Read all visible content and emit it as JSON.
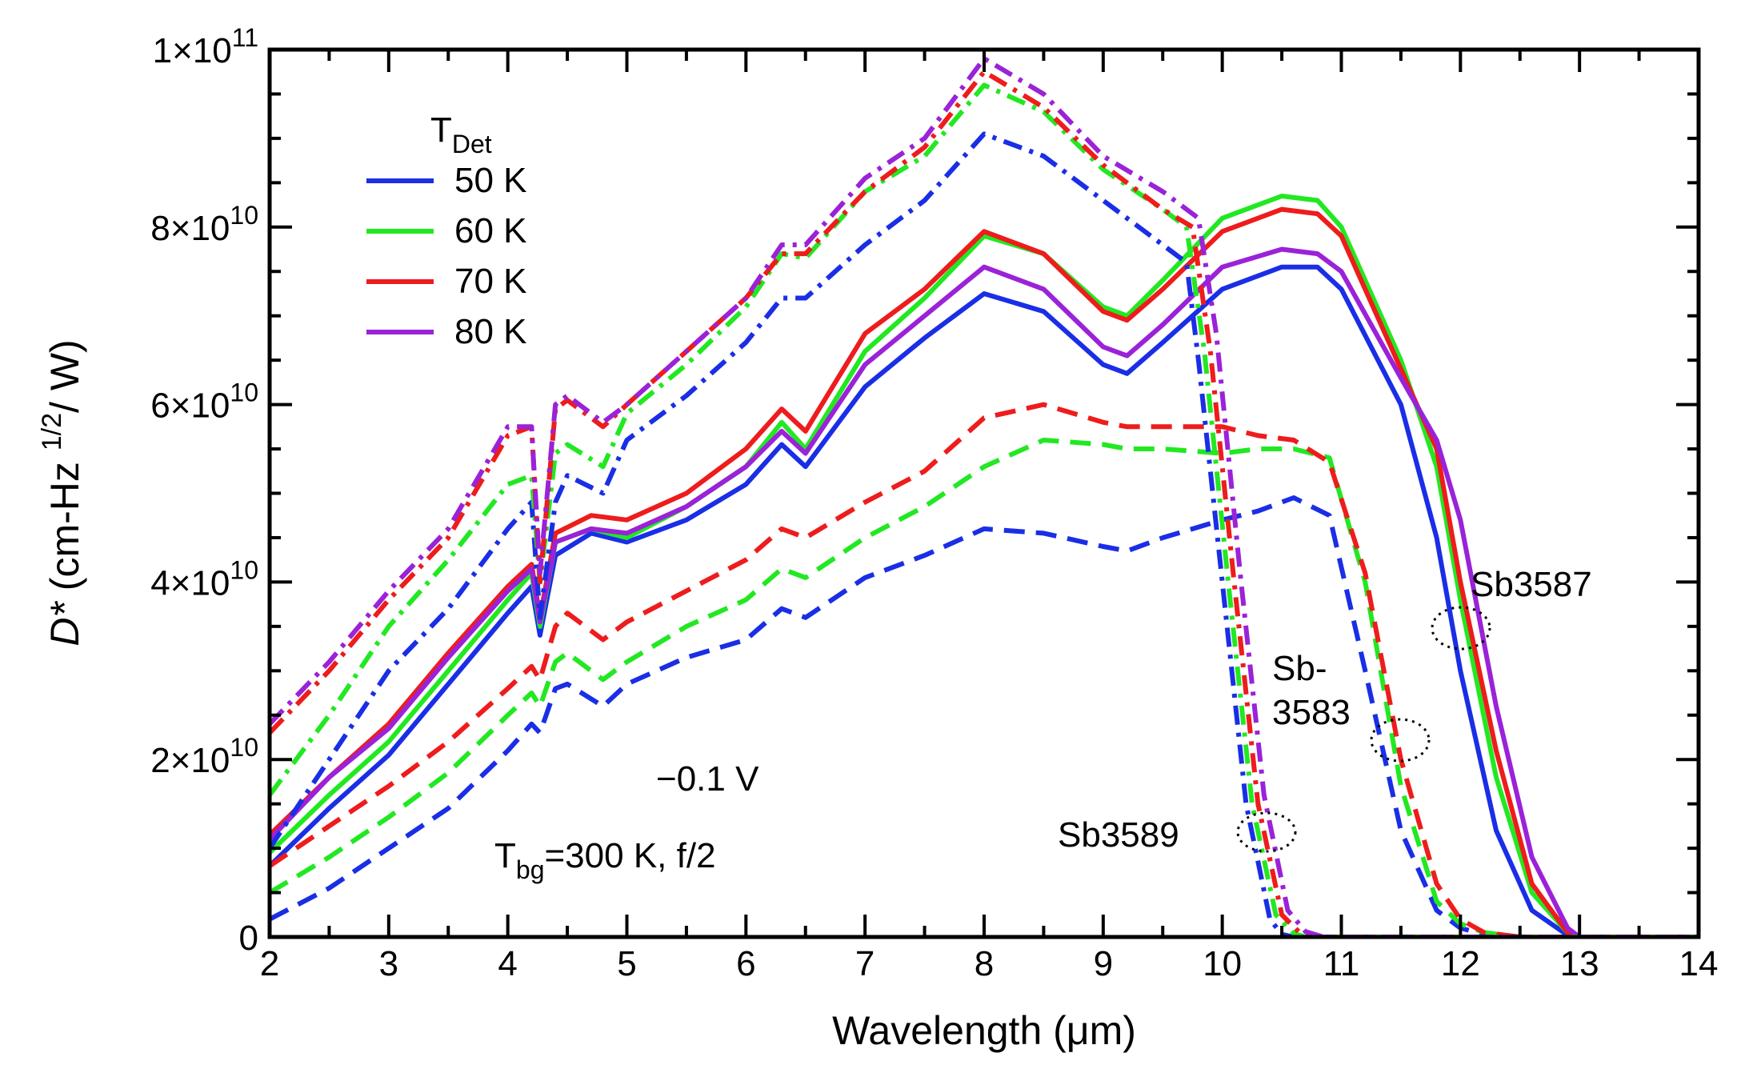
{
  "chart_data": {
    "type": "line",
    "xlabel": "Wavelength (μm)",
    "ylabel_main": "D*",
    "ylabel_rest": "(cm-Hz",
    "ylabel_sup": "1/2",
    "ylabel_end": "/ W)",
    "xlim": [
      2,
      14
    ],
    "ylim": [
      0,
      100000000000
    ],
    "x_ticks": [
      2,
      3,
      4,
      5,
      6,
      7,
      8,
      9,
      10,
      11,
      12,
      13,
      14
    ],
    "x_tick_labels": [
      "2",
      "3",
      "4",
      "5",
      "6",
      "7",
      "8",
      "9",
      "10",
      "11",
      "12",
      "13",
      "14"
    ],
    "y_ticks": [
      {
        "value": 0,
        "mant": "0",
        "exp": ""
      },
      {
        "value": 20000000000,
        "mant": "2×10",
        "exp": "10"
      },
      {
        "value": 40000000000,
        "mant": "4×10",
        "exp": "10"
      },
      {
        "value": 60000000000,
        "mant": "6×10",
        "exp": "10"
      },
      {
        "value": 80000000000,
        "mant": "8×10",
        "exp": "10"
      },
      {
        "value": 100000000000,
        "mant": "1×10",
        "exp": "11"
      }
    ],
    "legend": {
      "title_main": "T",
      "title_sub": "Det",
      "entries": [
        {
          "label": "50 K",
          "color": "#1a2ee6"
        },
        {
          "label": "60 K",
          "color": "#22e822"
        },
        {
          "label": "70 K",
          "color": "#ee1c1c"
        },
        {
          "label": "80 K",
          "color": "#9a22d8"
        }
      ]
    },
    "annotations": {
      "bias": "−0.1 V",
      "tbg_main": "T",
      "tbg_sub": "bg",
      "tbg_rest": "=300 K, f/2",
      "sample_solid": "Sb3587",
      "sample_dashed_1": "Sb-",
      "sample_dashed_2": "3583",
      "sample_dashdot": "Sb3589"
    },
    "series": [
      {
        "name": "Sb3587 50 K",
        "sample": "Sb3587",
        "color": "#1a2ee6",
        "style": "solid",
        "x": [
          2.0,
          2.5,
          3.0,
          3.5,
          4.0,
          4.2,
          4.27,
          4.4,
          4.7,
          5.0,
          5.5,
          6.0,
          6.3,
          6.5,
          7.0,
          7.5,
          8.0,
          8.5,
          9.0,
          9.2,
          9.5,
          10.0,
          10.5,
          10.8,
          11.0,
          11.5,
          11.8,
          12.0,
          12.3,
          12.6,
          12.9,
          13.0,
          14.0
        ],
        "y": [
          8000000000.0,
          14500000000.0,
          20500000000.0,
          28500000000.0,
          36500000000.0,
          39500000000.0,
          34000000000.0,
          43000000000.0,
          45500000000.0,
          44500000000.0,
          47000000000.0,
          51000000000.0,
          55500000000.0,
          53000000000.0,
          62000000000.0,
          67500000000.0,
          72500000000.0,
          70500000000.0,
          64500000000.0,
          63500000000.0,
          67000000000.0,
          73000000000.0,
          75500000000.0,
          75500000000.0,
          73000000000.0,
          60000000000.0,
          45000000000.0,
          30000000000.0,
          12000000000.0,
          3000000000.0,
          200000000.0,
          0,
          0
        ]
      },
      {
        "name": "Sb3587 60 K",
        "sample": "Sb3587",
        "color": "#22e822",
        "style": "solid",
        "x": [
          2.0,
          2.5,
          3.0,
          3.5,
          4.0,
          4.2,
          4.27,
          4.4,
          4.7,
          5.0,
          5.5,
          6.0,
          6.3,
          6.5,
          7.0,
          7.5,
          8.0,
          8.5,
          9.0,
          9.2,
          9.5,
          10.0,
          10.5,
          10.8,
          11.0,
          11.5,
          11.8,
          12.0,
          12.3,
          12.6,
          12.9,
          13.0,
          14.0
        ],
        "y": [
          9500000000.0,
          16000000000.0,
          22000000000.0,
          30000000000.0,
          38000000000.0,
          41000000000.0,
          35000000000.0,
          44500000000.0,
          46000000000.0,
          45000000000.0,
          48500000000.0,
          53000000000.0,
          58000000000.0,
          55000000000.0,
          66000000000.0,
          72000000000.0,
          79000000000.0,
          77000000000.0,
          71000000000.0,
          70000000000.0,
          74000000000.0,
          81000000000.0,
          83500000000.0,
          83000000000.0,
          80000000000.0,
          65000000000.0,
          53000000000.0,
          38000000000.0,
          18000000000.0,
          5000000000.0,
          500000000.0,
          0,
          0
        ]
      },
      {
        "name": "Sb3587 70 K",
        "sample": "Sb3587",
        "color": "#ee1c1c",
        "style": "solid",
        "x": [
          2.0,
          2.5,
          3.0,
          3.5,
          4.0,
          4.2,
          4.27,
          4.4,
          4.7,
          5.0,
          5.5,
          6.0,
          6.3,
          6.5,
          7.0,
          7.5,
          8.0,
          8.5,
          9.0,
          9.2,
          9.5,
          10.0,
          10.5,
          10.8,
          11.0,
          11.5,
          11.8,
          12.0,
          12.3,
          12.6,
          12.9,
          13.0,
          14.0
        ],
        "y": [
          11500000000.0,
          18000000000.0,
          24000000000.0,
          32000000000.0,
          39500000000.0,
          42000000000.0,
          36000000000.0,
          45500000000.0,
          47500000000.0,
          47000000000.0,
          50000000000.0,
          55000000000.0,
          59500000000.0,
          57000000000.0,
          68000000000.0,
          73000000000.0,
          79500000000.0,
          77000000000.0,
          70500000000.0,
          69500000000.0,
          73000000000.0,
          79500000000.0,
          82000000000.0,
          81500000000.0,
          79000000000.0,
          64000000000.0,
          55000000000.0,
          40000000000.0,
          21000000000.0,
          6000000000.0,
          500000000.0,
          0,
          0
        ]
      },
      {
        "name": "Sb3587 80 K",
        "sample": "Sb3587",
        "color": "#9a22d8",
        "style": "solid",
        "x": [
          2.0,
          2.5,
          3.0,
          3.5,
          4.0,
          4.2,
          4.27,
          4.4,
          4.7,
          5.0,
          5.5,
          6.0,
          6.3,
          6.5,
          7.0,
          7.5,
          8.0,
          8.5,
          9.0,
          9.2,
          9.5,
          10.0,
          10.5,
          10.8,
          11.0,
          11.5,
          11.8,
          12.0,
          12.3,
          12.6,
          12.9,
          13.0,
          14.0
        ],
        "y": [
          11000000000.0,
          18000000000.0,
          23500000000.0,
          31500000000.0,
          39000000000.0,
          41500000000.0,
          35500000000.0,
          44500000000.0,
          46000000000.0,
          45500000000.0,
          48500000000.0,
          53000000000.0,
          57000000000.0,
          54500000000.0,
          64500000000.0,
          70000000000.0,
          75500000000.0,
          73000000000.0,
          66500000000.0,
          65500000000.0,
          69000000000.0,
          75500000000.0,
          77500000000.0,
          77000000000.0,
          75000000000.0,
          63000000000.0,
          56000000000.0,
          47000000000.0,
          26000000000.0,
          9000000000.0,
          1000000000.0,
          0,
          0
        ]
      },
      {
        "name": "Sb3583 50 K",
        "sample": "Sb3583",
        "color": "#1a2ee6",
        "style": "dashed",
        "x": [
          2.0,
          2.5,
          3.0,
          3.5,
          4.0,
          4.2,
          4.27,
          4.4,
          4.5,
          4.8,
          5.0,
          5.5,
          6.0,
          6.3,
          6.5,
          7.0,
          7.5,
          8.0,
          8.5,
          9.0,
          9.2,
          9.5,
          10.0,
          10.3,
          10.6,
          10.9,
          11.2,
          11.5,
          11.8,
          12.0,
          12.2,
          12.5,
          14.0
        ],
        "y": [
          2000000000.0,
          5500000000.0,
          10000000000.0,
          14500000000.0,
          21000000000.0,
          24000000000.0,
          23000000000.0,
          28000000000.0,
          28500000000.0,
          26000000000.0,
          28500000000.0,
          31500000000.0,
          33500000000.0,
          37000000000.0,
          36000000000.0,
          40500000000.0,
          43000000000.0,
          46000000000.0,
          45500000000.0,
          44000000000.0,
          43500000000.0,
          45000000000.0,
          47000000000.0,
          48000000000.0,
          49500000000.0,
          47500000000.0,
          30000000000.0,
          12000000000.0,
          3000000000.0,
          1000000000.0,
          300000000.0,
          0,
          0
        ]
      },
      {
        "name": "Sb3583 60 K",
        "sample": "Sb3583",
        "color": "#22e822",
        "style": "dashed",
        "x": [
          2.0,
          2.5,
          3.0,
          3.5,
          4.0,
          4.2,
          4.27,
          4.4,
          4.5,
          4.8,
          5.0,
          5.5,
          6.0,
          6.3,
          6.5,
          7.0,
          7.5,
          8.0,
          8.5,
          9.0,
          9.2,
          9.5,
          10.0,
          10.3,
          10.6,
          10.9,
          11.2,
          11.5,
          11.8,
          12.0,
          12.2,
          12.5,
          14.0
        ],
        "y": [
          5000000000.0,
          9000000000.0,
          13500000000.0,
          18500000000.0,
          25000000000.0,
          27500000000.0,
          26000000000.0,
          31000000000.0,
          32000000000.0,
          29000000000.0,
          31000000000.0,
          35000000000.0,
          38000000000.0,
          41500000000.0,
          40500000000.0,
          45000000000.0,
          48500000000.0,
          53000000000.0,
          56000000000.0,
          55500000000.0,
          55000000000.0,
          55000000000.0,
          54500000000.0,
          55000000000.0,
          55000000000.0,
          54000000000.0,
          40000000000.0,
          17000000000.0,
          4000000000.0,
          1500000000.0,
          500000000.0,
          0,
          0
        ]
      },
      {
        "name": "Sb3583 70 K",
        "sample": "Sb3583",
        "color": "#ee1c1c",
        "style": "dashed",
        "x": [
          2.0,
          2.5,
          3.0,
          3.5,
          4.0,
          4.2,
          4.27,
          4.4,
          4.5,
          4.8,
          5.0,
          5.5,
          6.0,
          6.3,
          6.5,
          7.0,
          7.5,
          8.0,
          8.5,
          9.0,
          9.2,
          9.5,
          10.0,
          10.3,
          10.6,
          10.9,
          11.2,
          11.5,
          11.8,
          12.0,
          12.2,
          12.5,
          14.0
        ],
        "y": [
          8000000000.0,
          12500000000.0,
          17000000000.0,
          22000000000.0,
          28000000000.0,
          30500000000.0,
          29000000000.0,
          35000000000.0,
          36500000000.0,
          33500000000.0,
          35500000000.0,
          39000000000.0,
          42500000000.0,
          46000000000.0,
          45000000000.0,
          49000000000.0,
          52500000000.0,
          58500000000.0,
          60000000000.0,
          58000000000.0,
          57500000000.0,
          57500000000.0,
          57500000000.0,
          56500000000.0,
          56000000000.0,
          53500000000.0,
          41000000000.0,
          20000000000.0,
          6000000000.0,
          2000000000.0,
          500000000.0,
          0,
          0
        ]
      },
      {
        "name": "Sb3589 50 K",
        "sample": "Sb3589",
        "color": "#1a2ee6",
        "style": "dashdot",
        "x": [
          2.0,
          2.5,
          3.0,
          3.5,
          4.0,
          4.2,
          4.27,
          4.4,
          4.5,
          4.8,
          5.0,
          5.5,
          6.0,
          6.3,
          6.5,
          7.0,
          7.5,
          8.0,
          8.5,
          9.0,
          9.5,
          9.7,
          9.8,
          10.0,
          10.2,
          10.4,
          10.5,
          10.6,
          14.0
        ],
        "y": [
          10000000000.0,
          20000000000.0,
          30000000000.0,
          37000000000.0,
          46000000000.0,
          49000000000.0,
          36000000000.0,
          49000000000.0,
          52000000000.0,
          50000000000.0,
          56000000000.0,
          61000000000.0,
          67000000000.0,
          72000000000.0,
          72000000000.0,
          78000000000.0,
          83000000000.0,
          90500000000.0,
          88000000000.0,
          83000000000.0,
          78000000000.0,
          76000000000.0,
          65000000000.0,
          40000000000.0,
          15000000000.0,
          2000000000.0,
          300000000.0,
          0,
          0
        ]
      },
      {
        "name": "Sb3589 60 K",
        "sample": "Sb3589",
        "color": "#22e822",
        "style": "dashdot",
        "x": [
          2.0,
          2.5,
          3.0,
          3.5,
          4.0,
          4.2,
          4.27,
          4.4,
          4.5,
          4.8,
          5.0,
          5.5,
          6.0,
          6.3,
          6.5,
          7.0,
          7.5,
          8.0,
          8.5,
          9.0,
          9.5,
          9.7,
          9.85,
          10.05,
          10.25,
          10.45,
          10.6,
          10.7,
          14.0
        ],
        "y": [
          16000000000.0,
          25000000000.0,
          35000000000.0,
          42500000000.0,
          51000000000.0,
          52000000000.0,
          40000000000.0,
          54500000000.0,
          55500000000.0,
          53000000000.0,
          59000000000.0,
          64500000000.0,
          71000000000.0,
          77000000000.0,
          76500000000.0,
          84000000000.0,
          88000000000.0,
          96000000000.0,
          93000000000.0,
          86500000000.0,
          82000000000.0,
          80000000000.0,
          66000000000.0,
          40000000000.0,
          15000000000.0,
          2500000000.0,
          400000000.0,
          0,
          0
        ]
      },
      {
        "name": "Sb3589 70 K",
        "sample": "Sb3589",
        "color": "#ee1c1c",
        "style": "dashdot",
        "x": [
          2.0,
          2.5,
          3.0,
          3.5,
          4.0,
          4.2,
          4.27,
          4.4,
          4.5,
          4.8,
          5.0,
          5.5,
          6.0,
          6.3,
          6.5,
          7.0,
          7.5,
          8.0,
          8.5,
          9.0,
          9.5,
          9.75,
          9.9,
          10.1,
          10.3,
          10.5,
          10.65,
          10.75,
          14.0
        ],
        "y": [
          23000000000.0,
          30000000000.0,
          38000000000.0,
          45000000000.0,
          56500000000.0,
          57500000000.0,
          40000000000.0,
          59500000000.0,
          60500000000.0,
          57500000000.0,
          60000000000.0,
          66000000000.0,
          72000000000.0,
          77000000000.0,
          77000000000.0,
          84000000000.0,
          89000000000.0,
          97500000000.0,
          93500000000.0,
          87000000000.0,
          82000000000.0,
          80000000000.0,
          66000000000.0,
          40000000000.0,
          15000000000.0,
          2500000000.0,
          500000000.0,
          0,
          0
        ]
      },
      {
        "name": "Sb3589 80 K",
        "sample": "Sb3589",
        "color": "#9a22d8",
        "style": "dashdot",
        "x": [
          2.0,
          2.5,
          3.0,
          3.5,
          4.0,
          4.2,
          4.27,
          4.4,
          4.5,
          4.8,
          5.0,
          5.5,
          6.0,
          6.3,
          6.5,
          7.0,
          7.5,
          8.0,
          8.5,
          9.0,
          9.5,
          9.8,
          9.95,
          10.15,
          10.35,
          10.55,
          10.7,
          10.85,
          14.0
        ],
        "y": [
          24000000000.0,
          31000000000.0,
          39000000000.0,
          46000000000.0,
          57500000000.0,
          57500000000.0,
          41000000000.0,
          60000000000.0,
          61000000000.0,
          58000000000.0,
          60000000000.0,
          66000000000.0,
          72000000000.0,
          78000000000.0,
          78000000000.0,
          85500000000.0,
          90000000000.0,
          99000000000.0,
          95000000000.0,
          88000000000.0,
          84000000000.0,
          81000000000.0,
          68000000000.0,
          41000000000.0,
          16000000000.0,
          3000000000.0,
          600000000.0,
          0,
          0
        ]
      }
    ]
  }
}
